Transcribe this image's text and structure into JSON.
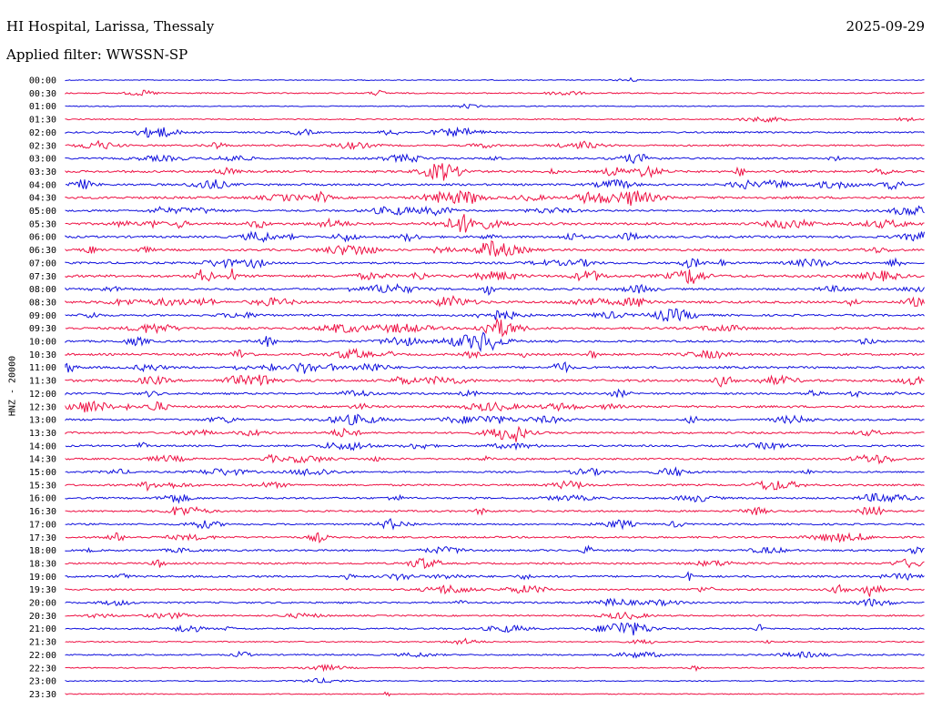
{
  "header": {
    "station": "HI Hospital, Larissa, Thessaly",
    "date": "2025-09-29",
    "filter": "Applied filter: WWSSN-SP",
    "channel": "HNZ - 20000"
  },
  "colors": {
    "even": "#1010dd",
    "odd": "#ee1144"
  },
  "chart_data": {
    "type": "line",
    "title": "HI Hospital, Larissa, Thessaly",
    "ylabel": "HNZ - 20000",
    "xlabel": "",
    "trace_labels": [
      "00:00",
      "00:30",
      "01:00",
      "01:30",
      "02:00",
      "02:30",
      "03:00",
      "03:30",
      "04:00",
      "04:30",
      "05:00",
      "05:30",
      "06:00",
      "06:30",
      "07:00",
      "07:30",
      "08:00",
      "08:30",
      "09:00",
      "09:30",
      "10:00",
      "10:30",
      "11:00",
      "11:30",
      "12:00",
      "12:30",
      "13:00",
      "13:30",
      "14:00",
      "14:30",
      "15:00",
      "15:30",
      "16:00",
      "16:30",
      "17:00",
      "17:30",
      "18:00",
      "18:30",
      "19:00",
      "19:30",
      "20:00",
      "20:30",
      "21:00",
      "21:30",
      "22:00",
      "22:30",
      "23:00",
      "23:30"
    ],
    "activity": [
      0.05,
      0.2,
      0.08,
      0.15,
      0.35,
      0.4,
      0.45,
      0.6,
      0.55,
      0.65,
      0.5,
      0.7,
      0.6,
      0.6,
      0.55,
      0.75,
      0.55,
      0.7,
      0.5,
      0.6,
      0.55,
      0.6,
      0.65,
      0.7,
      0.5,
      0.6,
      0.5,
      0.5,
      0.45,
      0.45,
      0.4,
      0.45,
      0.45,
      0.45,
      0.4,
      0.45,
      0.45,
      0.45,
      0.5,
      0.45,
      0.4,
      0.3,
      0.4,
      0.2,
      0.3,
      0.15,
      0.1,
      0.1
    ],
    "grid": false,
    "legend": "none"
  }
}
